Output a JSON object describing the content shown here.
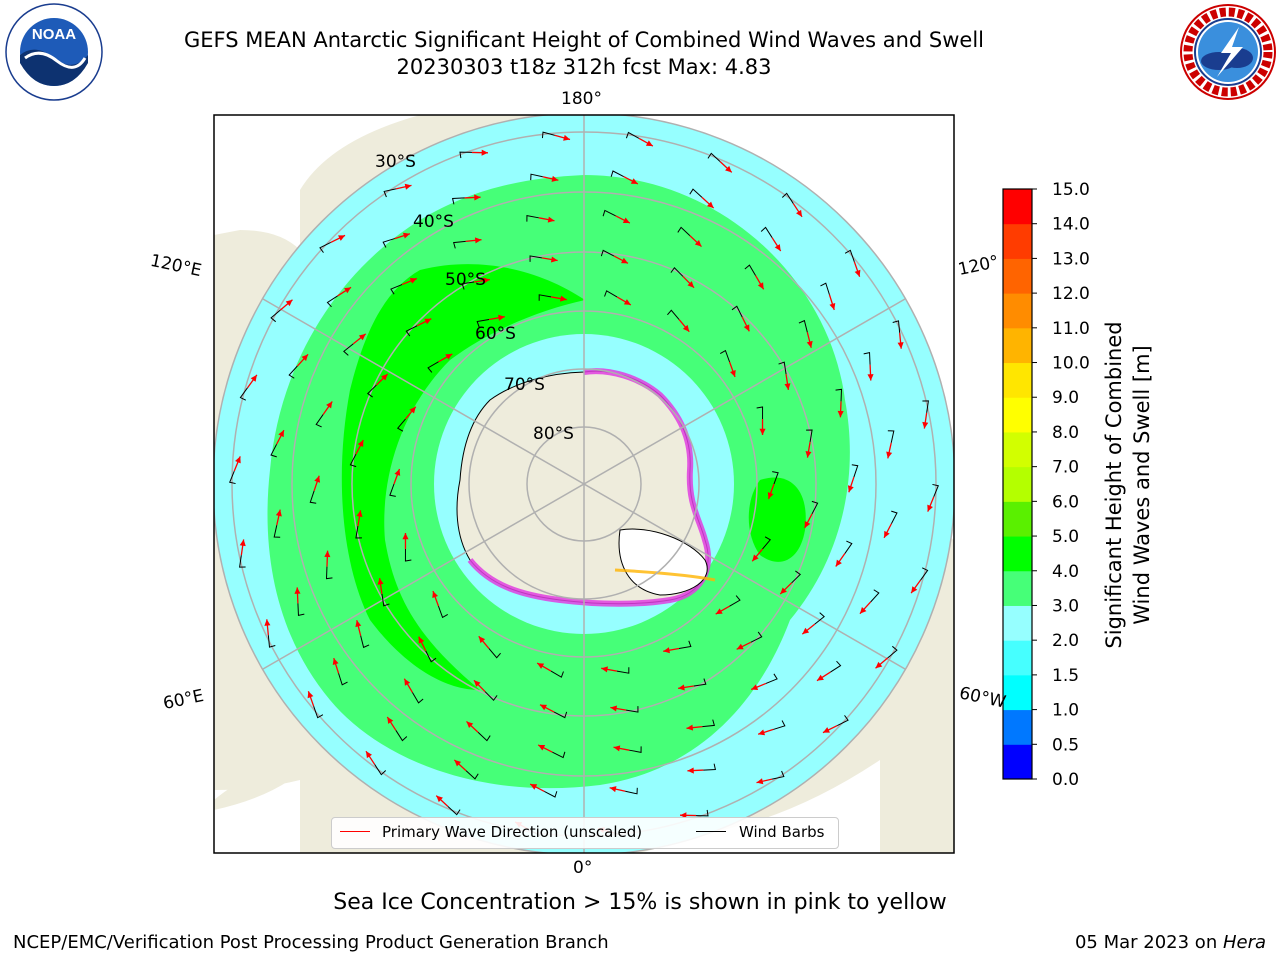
{
  "header": {
    "title_line1": "GEFS MEAN Antarctic Significant Height of Combined Wind Waves and Swell",
    "title_line2": "20230303 t18z 312h fcst   Max: 4.83"
  },
  "logos": {
    "left": {
      "name": "NOAA",
      "ring_text": "NATIONAL OCEANIC AND ATMOSPHERIC ADMINISTRATION · U.S. DEPARTMENT OF COMMERCE ·"
    },
    "right": {
      "name": "NATIONAL WEATHER SERVICE"
    }
  },
  "map": {
    "longitude_labels": {
      "top": "180°",
      "bottom": "0°",
      "left_upper": "120°E",
      "left_lower": "60°E",
      "right_upper": "120°",
      "right_lower": "60°W"
    },
    "latitude_labels": [
      "30°S",
      "40°S",
      "50°S",
      "60°S",
      "70°S",
      "80°S"
    ],
    "colors": {
      "land": "#eeecdc",
      "ocean_outside": "#ffffff",
      "grid": "#b0b0b0",
      "arrows": "#ff0000",
      "barbs": "#000000",
      "ice_edge": "#e040e0"
    }
  },
  "legend": {
    "primary_wave": "Primary Wave Direction (unscaled)",
    "wind_barbs": "Wind Barbs",
    "primary_color": "#ff0000",
    "barb_color": "#000000"
  },
  "colorbar": {
    "title_line1": "Significant Height of Combined",
    "title_line2": "Wind Waves and Swell [m]",
    "tick_labels": [
      "0.0",
      "0.5",
      "1.0",
      "1.5",
      "2.0",
      "3.0",
      "4.0",
      "5.0",
      "6.0",
      "7.0",
      "8.0",
      "9.0",
      "10.0",
      "11.0",
      "12.0",
      "13.0",
      "14.0",
      "15.0"
    ],
    "colors": [
      "#0000ff",
      "#0078ff",
      "#00ffff",
      "#46ffff",
      "#96ffff",
      "#46ff78",
      "#00ff00",
      "#5af000",
      "#b4ff00",
      "#d2ff00",
      "#ffff00",
      "#ffe600",
      "#ffb400",
      "#ff8c00",
      "#ff6400",
      "#ff3c00",
      "#ff0000"
    ]
  },
  "caption": "Sea Ice Concentration > 15% is shown in pink to yellow",
  "footer": {
    "left": "NCEP/EMC/Verification Post Processing Product Generation Branch",
    "right_prefix": "05 Mar 2023 on ",
    "right_machine": "Hera"
  }
}
